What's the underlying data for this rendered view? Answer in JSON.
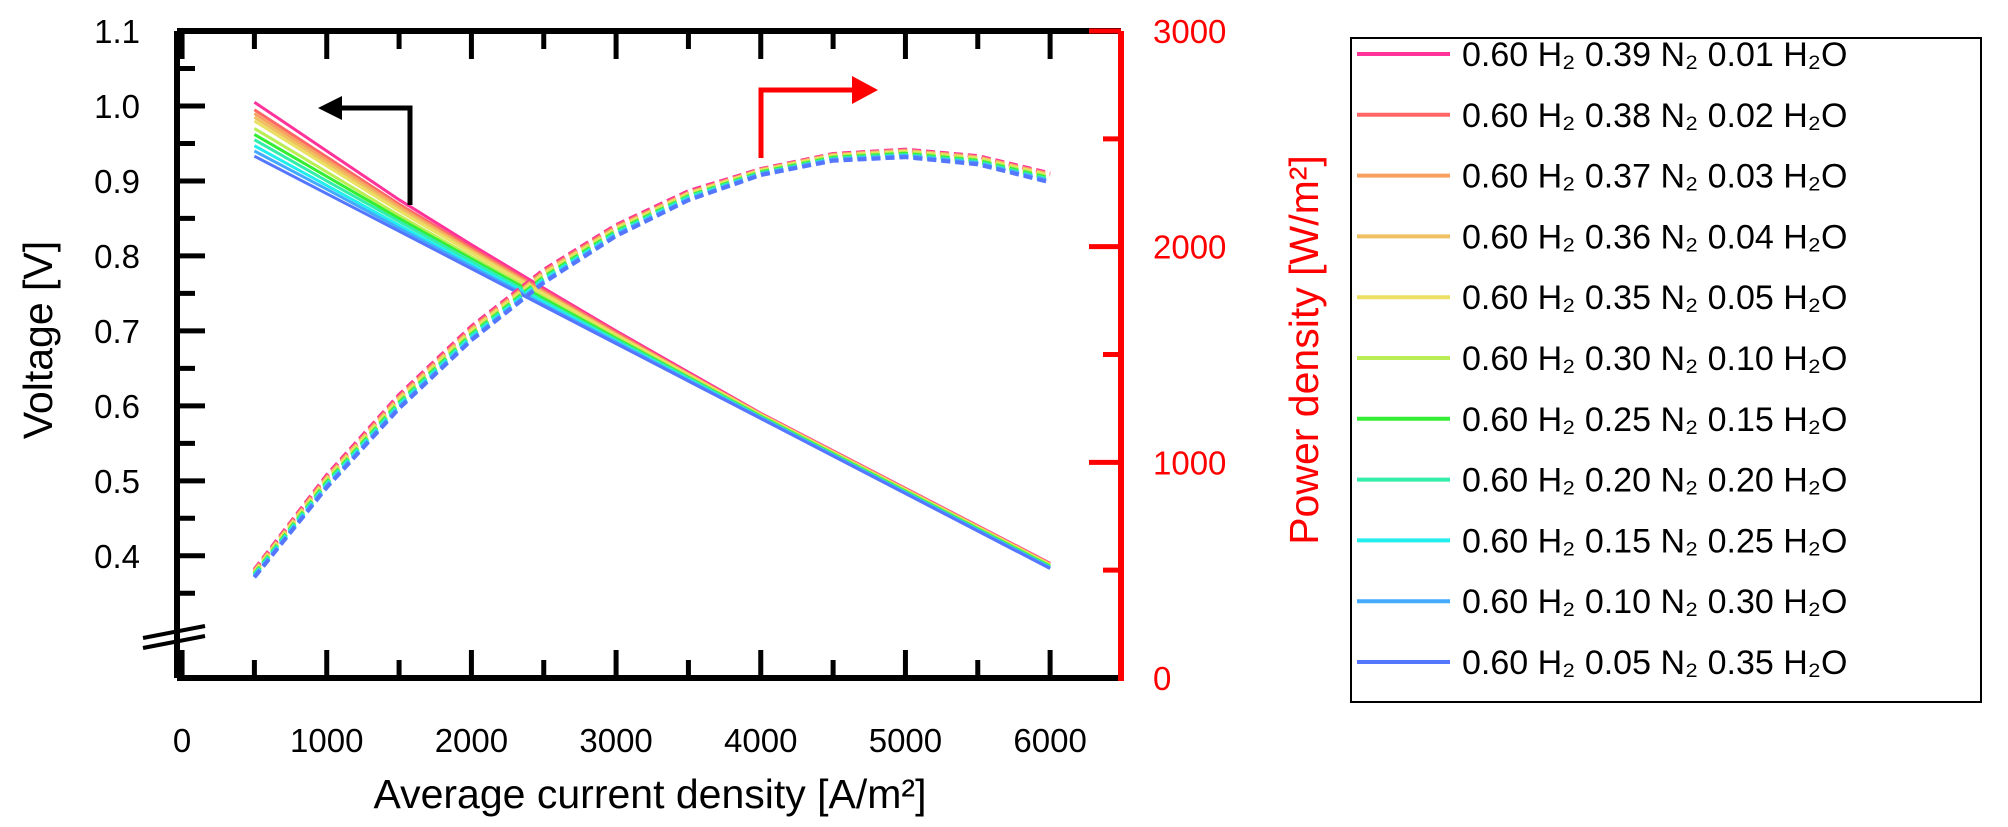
{
  "chart_data": {
    "type": "line",
    "title": "",
    "xlabel": "Average current density [A/m²]",
    "ylabel": "Voltage [V]",
    "y2label": "Power density [W/m²]",
    "xlim": [
      -35,
      6490
    ],
    "ylim": [
      0.237,
      1.1
    ],
    "y2lim": [
      0,
      3000
    ],
    "xticks": [
      "0",
      "1000",
      "2000",
      "3000",
      "4000",
      "5000",
      "6000"
    ],
    "yticks": [
      "0.4",
      "0.5",
      "0.6",
      "0.7",
      "0.8",
      "0.9",
      "1.0",
      "1.1"
    ],
    "y2ticks": [
      "0",
      "1000",
      "2000",
      "3000"
    ],
    "axis_break": "left y-axis below 0.4",
    "annotations": [
      "black arrow pointing left to voltage axis",
      "red arrow pointing right to power density axis"
    ],
    "legend_position": "right, outside plot",
    "line_styles": {
      "voltage": "solid",
      "power_density": "dashed (power = voltage × current density)"
    },
    "x": [
      500,
      1000,
      1500,
      2000,
      2500,
      3000,
      3500,
      4000,
      4500,
      5000,
      5500,
      6000
    ],
    "series": [
      {
        "name": "0.60 H₂ 0.39 N₂ 0.01 H₂O",
        "color": "#ff3399",
        "voltage": [
          1.005,
          0.94,
          0.875,
          0.815,
          0.757,
          0.7,
          0.645,
          0.59,
          0.54,
          0.49,
          0.44,
          0.39
        ]
      },
      {
        "name": "0.60 H₂ 0.38 N₂ 0.02 H₂O",
        "color": "#ff6666",
        "voltage": [
          0.995,
          0.932,
          0.869,
          0.811,
          0.754,
          0.698,
          0.643,
          0.589,
          0.539,
          0.489,
          0.439,
          0.389
        ]
      },
      {
        "name": "0.60 H₂ 0.37 N₂ 0.03 H₂O",
        "color": "#f7a060",
        "voltage": [
          0.99,
          0.928,
          0.866,
          0.808,
          0.752,
          0.696,
          0.642,
          0.589,
          0.539,
          0.489,
          0.439,
          0.389
        ]
      },
      {
        "name": "0.60 H₂ 0.36 N₂ 0.04 H₂O",
        "color": "#f0c060",
        "voltage": [
          0.985,
          0.924,
          0.863,
          0.806,
          0.75,
          0.695,
          0.642,
          0.588,
          0.538,
          0.488,
          0.438,
          0.388
        ]
      },
      {
        "name": "0.60 H₂ 0.35 N₂ 0.05 H₂O",
        "color": "#ece064",
        "voltage": [
          0.98,
          0.92,
          0.86,
          0.804,
          0.749,
          0.694,
          0.641,
          0.588,
          0.538,
          0.488,
          0.438,
          0.388
        ]
      },
      {
        "name": "0.60 H₂ 0.30 N₂ 0.10 H₂O",
        "color": "#bbee55",
        "voltage": [
          0.97,
          0.912,
          0.854,
          0.799,
          0.745,
          0.692,
          0.639,
          0.587,
          0.537,
          0.487,
          0.437,
          0.387
        ]
      },
      {
        "name": "0.60 H₂ 0.25 N₂ 0.15 H₂O",
        "color": "#33ee33",
        "voltage": [
          0.962,
          0.906,
          0.85,
          0.796,
          0.743,
          0.69,
          0.638,
          0.586,
          0.536,
          0.486,
          0.436,
          0.386
        ]
      },
      {
        "name": "0.60 H₂ 0.20 N₂ 0.20 H₂O",
        "color": "#33eeaa",
        "voltage": [
          0.955,
          0.9,
          0.846,
          0.793,
          0.74,
          0.688,
          0.637,
          0.585,
          0.535,
          0.485,
          0.435,
          0.385
        ]
      },
      {
        "name": "0.60 H₂ 0.15 N₂ 0.25 H₂O",
        "color": "#22eeee",
        "voltage": [
          0.947,
          0.894,
          0.841,
          0.789,
          0.738,
          0.686,
          0.635,
          0.584,
          0.534,
          0.484,
          0.434,
          0.384
        ]
      },
      {
        "name": "0.60 H₂ 0.10 N₂ 0.30 H₂O",
        "color": "#44aaff",
        "voltage": [
          0.94,
          0.889,
          0.837,
          0.786,
          0.735,
          0.685,
          0.634,
          0.584,
          0.534,
          0.484,
          0.434,
          0.384
        ]
      },
      {
        "name": "0.60 H₂ 0.05 N₂ 0.35 H₂O",
        "color": "#5577ff",
        "voltage": [
          0.933,
          0.883,
          0.833,
          0.783,
          0.733,
          0.683,
          0.633,
          0.583,
          0.533,
          0.483,
          0.433,
          0.383
        ]
      }
    ]
  }
}
